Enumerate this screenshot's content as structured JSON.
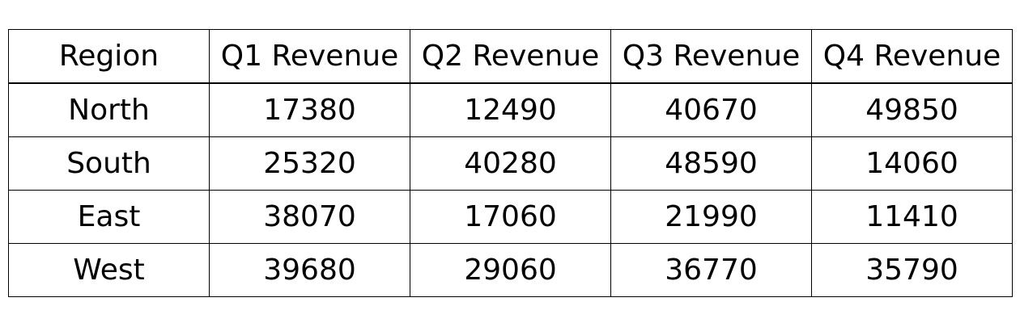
{
  "chart_data": {
    "type": "table",
    "columns": [
      "Region",
      "Q1 Revenue",
      "Q2 Revenue",
      "Q3 Revenue",
      "Q4 Revenue"
    ],
    "rows": [
      [
        "North",
        "17380",
        "12490",
        "40670",
        "49850"
      ],
      [
        "South",
        "25320",
        "40280",
        "48590",
        "14060"
      ],
      [
        "East",
        "38070",
        "17060",
        "21990",
        "11410"
      ],
      [
        "West",
        "39680",
        "29060",
        "36770",
        "35790"
      ]
    ]
  }
}
